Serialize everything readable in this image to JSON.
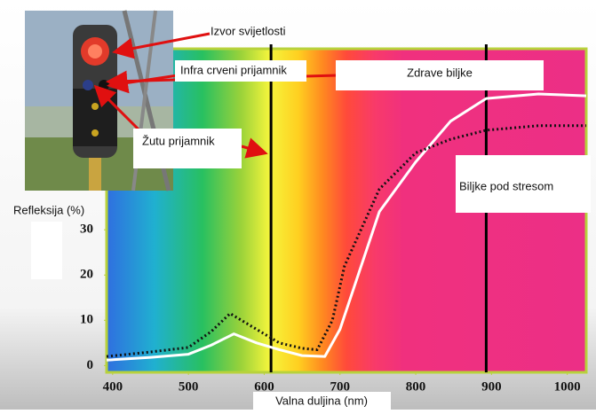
{
  "chart_data": {
    "type": "line",
    "y_label": "Refleksija (%)",
    "x_label": "Valna duljina (nm)",
    "xlim": [
      392,
      1025
    ],
    "ylim": [
      -1.5,
      70
    ],
    "xticks": [
      400,
      500,
      600,
      700,
      800,
      900,
      1000
    ],
    "yticks": [
      0,
      10,
      20,
      30
    ],
    "vlines": [
      609,
      893
    ],
    "series": [
      {
        "name": "Zdrave biljke",
        "color": "#ffffff",
        "dash": false,
        "x": [
          392,
          450,
          500,
          530,
          560,
          590,
          620,
          650,
          680,
          700,
          720,
          752,
          800,
          846,
          893,
          962,
          1025
        ],
        "values": [
          1.2,
          1.8,
          2.5,
          4.5,
          7,
          5,
          3.5,
          2.2,
          2,
          8,
          18,
          34,
          45,
          54,
          59,
          60,
          59.6
        ]
      },
      {
        "name": "Biljke pod stresom",
        "color": "#111111",
        "dash": true,
        "x": [
          392,
          450,
          500,
          530,
          555,
          580,
          620,
          650,
          670,
          690,
          706,
          752,
          800,
          846,
          893,
          962,
          1025
        ],
        "values": [
          2,
          3,
          4,
          7.5,
          11.5,
          9,
          5,
          3.8,
          3.5,
          10,
          22,
          39,
          47,
          50,
          52,
          53,
          53
        ]
      }
    ],
    "annotations": [
      "Izvor svijetlosti",
      "Infra crveni prijamnik",
      "Žutu prijamnik"
    ]
  }
}
